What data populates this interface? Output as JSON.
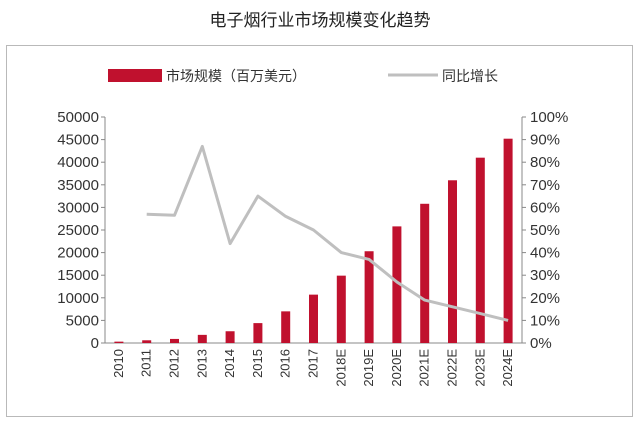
{
  "chart_data": {
    "type": "bar",
    "title": "电子烟行业市场规模变化趋势",
    "categories": [
      "2010",
      "2011",
      "2012",
      "2013",
      "2014",
      "2015",
      "2016",
      "2017",
      "2018E",
      "2019E",
      "2020E",
      "2021E",
      "2022E",
      "2023E",
      "2024E"
    ],
    "series": [
      {
        "name": "市场规模（百万美元）",
        "type": "bar",
        "axis": "left",
        "color": "#c0112e",
        "values": [
          300,
          600,
          900,
          1800,
          2600,
          4400,
          7000,
          10700,
          14900,
          20300,
          25800,
          30800,
          36000,
          41000,
          45200
        ]
      },
      {
        "name": "同比增长",
        "type": "line",
        "axis": "right",
        "color": "#bfbfbf",
        "values": [
          null,
          0.57,
          0.565,
          0.87,
          0.44,
          0.65,
          0.56,
          0.5,
          0.4,
          0.37,
          0.27,
          0.19,
          0.16,
          0.13,
          0.1
        ]
      }
    ],
    "y_left": {
      "min": 0,
      "max": 50000,
      "step": 5000,
      "tick_labels": [
        "0",
        "5000",
        "10000",
        "15000",
        "20000",
        "25000",
        "30000",
        "35000",
        "40000",
        "45000",
        "50000"
      ]
    },
    "y_right": {
      "min": 0,
      "max": 1.0,
      "step": 0.1,
      "tick_labels": [
        "0%",
        "10%",
        "20%",
        "30%",
        "40%",
        "50%",
        "60%",
        "70%",
        "80%",
        "90%",
        "100%"
      ]
    },
    "grid": false,
    "legend_position": "top"
  }
}
